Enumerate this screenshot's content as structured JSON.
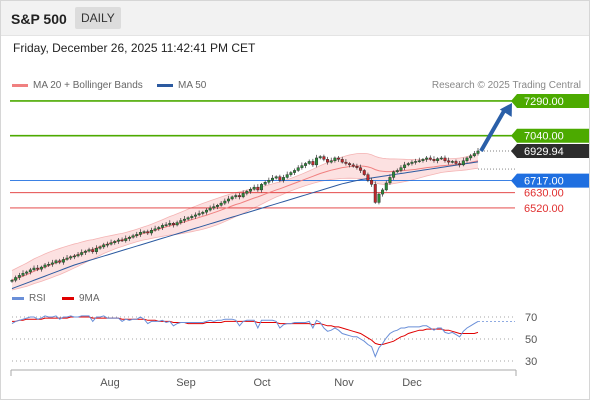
{
  "header": {
    "symbol": "S&P 500",
    "timeframe": "DAILY"
  },
  "timestamp": "Friday, December 26, 2025 11:42:41 PM CET",
  "copyright": "Research © 2025 Trading Central",
  "legend": {
    "bollinger": {
      "label": "MA 20 + Bollinger Bands",
      "color": "#f08080"
    },
    "ma50": {
      "label": "MA 50",
      "color": "#2c5aa0"
    },
    "rsi": {
      "label": "RSI",
      "color": "#6a8fd8"
    },
    "rsi_ma": {
      "label": "9MA",
      "color": "#e00000"
    }
  },
  "chart_data": [
    {
      "type": "candlestick",
      "x_ticks": [
        "Aug",
        "Sep",
        "Oct",
        "Nov",
        "Dec"
      ],
      "ylim": [
        5930,
        7340
      ],
      "levels": [
        {
          "label": "7290.00",
          "value": 7290,
          "color": "#4caa00",
          "kind": "resistance"
        },
        {
          "label": "7040.00",
          "value": 7040,
          "color": "#4caa00",
          "kind": "resistance"
        },
        {
          "label": "6929.94",
          "value": 6929.94,
          "color": "#333333",
          "kind": "last"
        },
        {
          "label": "6717.00",
          "value": 6717,
          "color": "#1f6fe0",
          "kind": "pivot"
        },
        {
          "label": "6630.00",
          "value": 6630,
          "color": "#e03030",
          "kind": "support"
        },
        {
          "label": "6520.00",
          "value": 6520,
          "color": "#e03030",
          "kind": "support"
        }
      ],
      "closes": [
        6000,
        6020,
        6035,
        6050,
        6060,
        6075,
        6088,
        6080,
        6095,
        6110,
        6115,
        6125,
        6140,
        6130,
        6150,
        6160,
        6170,
        6175,
        6185,
        6200,
        6210,
        6220,
        6205,
        6230,
        6240,
        6255,
        6260,
        6270,
        6280,
        6290,
        6285,
        6300,
        6310,
        6320,
        6330,
        6345,
        6350,
        6340,
        6360,
        6370,
        6380,
        6395,
        6400,
        6410,
        6398,
        6415,
        6430,
        6440,
        6450,
        6460,
        6470,
        6480,
        6490,
        6505,
        6520,
        6530,
        6540,
        6555,
        6570,
        6585,
        6600,
        6610,
        6600,
        6625,
        6640,
        6655,
        6670,
        6650,
        6690,
        6705,
        6720,
        6735,
        6745,
        6720,
        6740,
        6760,
        6775,
        6790,
        6810,
        6825,
        6840,
        6855,
        6830,
        6880,
        6890,
        6870,
        6850,
        6860,
        6880,
        6870,
        6850,
        6840,
        6830,
        6820,
        6810,
        6790,
        6760,
        6720,
        6690,
        6560,
        6620,
        6650,
        6700,
        6740,
        6780,
        6790,
        6810,
        6830,
        6840,
        6850,
        6855,
        6860,
        6870,
        6880,
        6870,
        6860,
        6875,
        6880,
        6860,
        6850,
        6855,
        6840,
        6830,
        6860,
        6880,
        6895,
        6912,
        6929.94
      ],
      "ma20": [
        6000,
        6010,
        6020,
        6030,
        6040,
        6052,
        6065,
        6075,
        6085,
        6096,
        6106,
        6116,
        6126,
        6135,
        6145,
        6155,
        6165,
        6175,
        6184,
        6195,
        6205,
        6215,
        6222,
        6232,
        6242,
        6252,
        6260,
        6268,
        6276,
        6284,
        6290,
        6298,
        6306,
        6314,
        6322,
        6330,
        6338,
        6344,
        6352,
        6360,
        6368,
        6376,
        6384,
        6392,
        6398,
        6405,
        6412,
        6420,
        6428,
        6436,
        6444,
        6452,
        6460,
        6468,
        6477,
        6486,
        6495,
        6505,
        6515,
        6525,
        6535,
        6545,
        6552,
        6562,
        6572,
        6582,
        6592,
        6600,
        6610,
        6620,
        6630,
        6640,
        6650,
        6658,
        6668,
        6678,
        6688,
        6698,
        6708,
        6718,
        6728,
        6738,
        6748,
        6758,
        6768,
        6776,
        6784,
        6792,
        6798,
        6804,
        6810,
        6814,
        6818,
        6820,
        6822,
        6822,
        6820,
        6816,
        6808,
        6796,
        6788,
        6784,
        6782,
        6782,
        6784,
        6786,
        6788,
        6790,
        6792,
        6795,
        6798,
        6802,
        6806,
        6810,
        6813,
        6816,
        6820,
        6824,
        6826,
        6828,
        6830,
        6832,
        6834,
        6838,
        6842,
        6848,
        6854,
        6860
      ],
      "ma50": [
        5940,
        5950,
        5960,
        5970,
        5980,
        5990,
        6000,
        6010,
        6020,
        6030,
        6040,
        6050,
        6060,
        6070,
        6080,
        6090,
        6100,
        6110,
        6118,
        6126,
        6134,
        6142,
        6150,
        6158,
        6166,
        6174,
        6182,
        6190,
        6198,
        6206,
        6214,
        6222,
        6230,
        6238,
        6246,
        6254,
        6262,
        6270,
        6278,
        6286,
        6294,
        6302,
        6310,
        6318,
        6326,
        6334,
        6342,
        6350,
        6358,
        6366,
        6374,
        6382,
        6390,
        6398,
        6406,
        6414,
        6422,
        6430,
        6438,
        6446,
        6454,
        6462,
        6470,
        6478,
        6486,
        6494,
        6502,
        6510,
        6518,
        6526,
        6534,
        6542,
        6550,
        6558,
        6566,
        6574,
        6582,
        6590,
        6598,
        6606,
        6614,
        6622,
        6630,
        6638,
        6646,
        6654,
        6662,
        6670,
        6678,
        6686,
        6694,
        6700,
        6706,
        6712,
        6718,
        6724,
        6728,
        6732,
        6736,
        6740,
        6744,
        6748,
        6752,
        6756,
        6760,
        6764,
        6768,
        6772,
        6776,
        6780,
        6784,
        6788,
        6792,
        6796,
        6800,
        6804,
        6808,
        6812,
        6816,
        6820,
        6824,
        6828,
        6832,
        6836,
        6840,
        6844,
        6848,
        6852
      ],
      "projection_target": 7290
    },
    {
      "type": "line",
      "ylim": [
        20,
        80
      ],
      "y_ticks": [
        "70",
        "50",
        "30"
      ],
      "reference_lines": [
        70,
        50,
        30
      ],
      "rsi": [
        64,
        66,
        67,
        68,
        69,
        70,
        70,
        68,
        69,
        71,
        70,
        70,
        71,
        68,
        70,
        70,
        71,
        70,
        70,
        71,
        71,
        71,
        66,
        70,
        70,
        71,
        69,
        69,
        69,
        69,
        66,
        68,
        67,
        68,
        68,
        70,
        68,
        64,
        66,
        66,
        66,
        67,
        65,
        66,
        62,
        64,
        65,
        65,
        65,
        65,
        65,
        65,
        65,
        66,
        67,
        66,
        67,
        67,
        68,
        68,
        68,
        67,
        62,
        66,
        67,
        67,
        67,
        60,
        67,
        67,
        67,
        67,
        66,
        60,
        63,
        64,
        64,
        65,
        65,
        65,
        65,
        66,
        60,
        67,
        65,
        60,
        57,
        58,
        60,
        58,
        55,
        54,
        53,
        52,
        52,
        50,
        48,
        45,
        43,
        34,
        42,
        46,
        51,
        55,
        57,
        58,
        60,
        60,
        61,
        61,
        61,
        61,
        62,
        62,
        60,
        58,
        60,
        60,
        56,
        55,
        56,
        54,
        52,
        57,
        60,
        62,
        64,
        66
      ],
      "rsi_ma": [
        66,
        66,
        67,
        67,
        68,
        68,
        68,
        68,
        68,
        69,
        69,
        69,
        69,
        69,
        69,
        69,
        70,
        70,
        70,
        70,
        70,
        70,
        69,
        69,
        69,
        69,
        69,
        69,
        69,
        69,
        68,
        68,
        68,
        68,
        68,
        68,
        68,
        67,
        67,
        67,
        66,
        66,
        66,
        66,
        65,
        65,
        65,
        65,
        64,
        64,
        64,
        64,
        64,
        65,
        65,
        65,
        65,
        65,
        66,
        66,
        66,
        66,
        66,
        66,
        66,
        66,
        66,
        65,
        65,
        65,
        65,
        65,
        65,
        64,
        64,
        64,
        64,
        64,
        64,
        64,
        64,
        64,
        63,
        64,
        64,
        63,
        62,
        62,
        61,
        61,
        60,
        59,
        58,
        57,
        56,
        55,
        53,
        51,
        49,
        46,
        45,
        45,
        46,
        47,
        48,
        50,
        52,
        53,
        55,
        56,
        57,
        58,
        58,
        59,
        59,
        59,
        59,
        59,
        58,
        58,
        57,
        56,
        55,
        55,
        55,
        55,
        55,
        56
      ]
    }
  ]
}
